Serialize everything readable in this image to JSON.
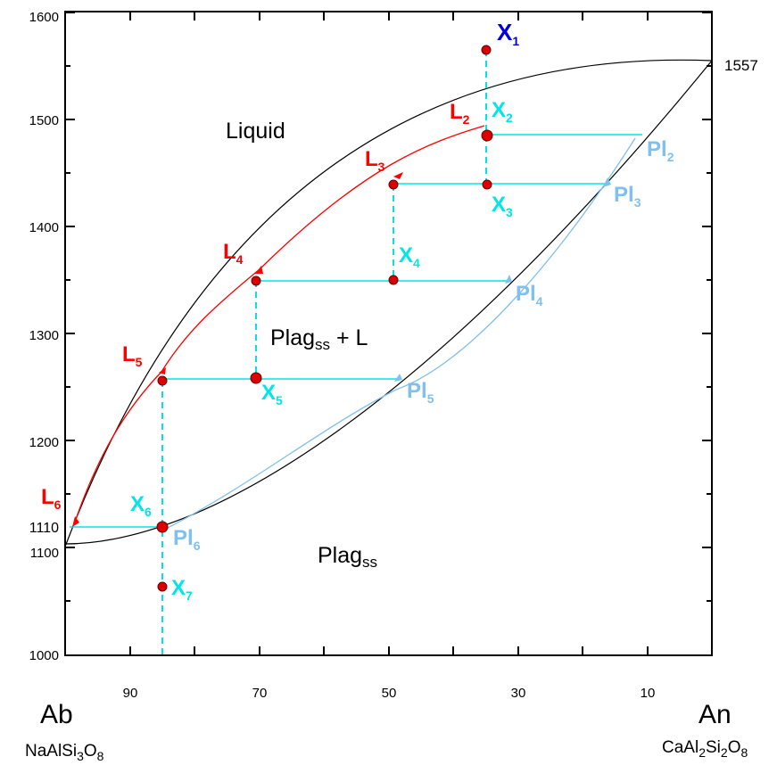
{
  "y_axis": {
    "ticks": [
      "1600",
      "1500",
      "1400",
      "1300",
      "1200",
      "1100",
      "1000"
    ],
    "special_left": "1110",
    "special_right": "1557"
  },
  "x_axis": {
    "ticks": [
      "90",
      "70",
      "50",
      "30",
      "10"
    ]
  },
  "endmembers": {
    "left": {
      "name": "Ab",
      "formula": [
        "NaAlSi",
        "3",
        "O",
        "8"
      ]
    },
    "right": {
      "name": "An",
      "formula": [
        "CaAl",
        "2",
        "Si",
        "2",
        "O",
        "8"
      ]
    }
  },
  "regions": {
    "liquid": "Liquid",
    "two_phase": {
      "main": "Plag",
      "sub": "ss",
      "rest": " + L"
    },
    "solid": {
      "main": "Plag",
      "sub": "ss"
    }
  },
  "points": {
    "x_labels": [
      {
        "main": "X",
        "sub": "1"
      },
      {
        "main": "X",
        "sub": "2"
      },
      {
        "main": "X",
        "sub": "3"
      },
      {
        "main": "X",
        "sub": "4"
      },
      {
        "main": "X",
        "sub": "5"
      },
      {
        "main": "X",
        "sub": "6"
      },
      {
        "main": "X",
        "sub": "7"
      }
    ],
    "l_labels": [
      {
        "main": "L",
        "sub": "2"
      },
      {
        "main": "L",
        "sub": "3"
      },
      {
        "main": "L",
        "sub": "4"
      },
      {
        "main": "L",
        "sub": "5"
      },
      {
        "main": "L",
        "sub": "6"
      }
    ],
    "pl_labels": [
      {
        "main": "Pl",
        "sub": "2"
      },
      {
        "main": "Pl",
        "sub": "3"
      },
      {
        "main": "Pl",
        "sub": "4"
      },
      {
        "main": "Pl",
        "sub": "5"
      },
      {
        "main": "Pl",
        "sub": "6"
      }
    ]
  },
  "colors": {
    "axes": "#000000",
    "liquidus": "#000000",
    "liquid_path": "#ff0000",
    "solid_path": "#80c0f0",
    "tie_lines": "#00e5e5",
    "points": "#dd0000",
    "x1_label": "#0000dd"
  }
}
